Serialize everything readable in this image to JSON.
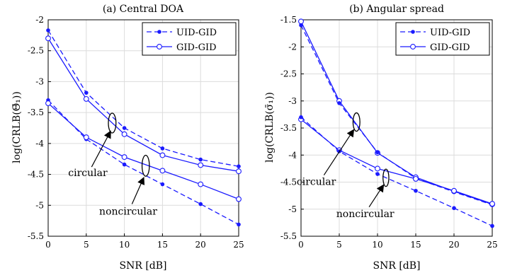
{
  "chart_data": [
    {
      "type": "line",
      "title": "(a) Central DOA",
      "xlabel": "SNR [dB]",
      "ylabel": "log(CRLB(Θ̄₁))",
      "xlim": [
        0,
        25
      ],
      "ylim": [
        -5.5,
        -2
      ],
      "xticks": [
        "0",
        "5",
        "10",
        "15",
        "20",
        "25"
      ],
      "yticks": [
        "-2",
        "-2.5",
        "-3",
        "-3.5",
        "-4",
        "-4.5",
        "-5",
        "-5.5"
      ],
      "grid": true,
      "legend_position": "top-right",
      "legend": [
        "UID-GID",
        "GID-GID"
      ],
      "x": [
        0,
        5,
        10,
        15,
        20,
        25
      ],
      "series": [
        {
          "name": "UID-GID",
          "group": "circular",
          "style": "dashed",
          "marker": "filled-dot",
          "values": [
            -2.17,
            -3.18,
            -3.75,
            -4.08,
            -4.26,
            -4.37
          ]
        },
        {
          "name": "GID-GID",
          "group": "circular",
          "style": "solid",
          "marker": "open-circle",
          "values": [
            -2.3,
            -3.28,
            -3.85,
            -4.19,
            -4.35,
            -4.45
          ]
        },
        {
          "name": "UID-GID",
          "group": "noncircular",
          "style": "dashed",
          "marker": "filled-dot",
          "values": [
            -3.3,
            -3.93,
            -4.34,
            -4.66,
            -4.98,
            -5.31
          ]
        },
        {
          "name": "GID-GID",
          "group": "noncircular",
          "style": "solid",
          "marker": "open-circle",
          "values": [
            -3.35,
            -3.9,
            -4.22,
            -4.44,
            -4.66,
            -4.9
          ]
        }
      ],
      "annotations": [
        {
          "text": "circular",
          "ellipse_at": [
            8.4,
            -3.67
          ],
          "ellipse_half_width": 0.5,
          "ellipse_half_height": 0.16,
          "label_at": [
            5.2,
            -4.53
          ],
          "arrow_from": [
            5.7,
            -4.38
          ],
          "arrow_to": [
            8.2,
            -3.8
          ]
        },
        {
          "text": "noncircular",
          "ellipse_at": [
            12.8,
            -4.36
          ],
          "ellipse_half_width": 0.48,
          "ellipse_half_height": 0.17,
          "label_at": [
            10.5,
            -5.15
          ],
          "arrow_from": [
            11.0,
            -4.98
          ],
          "arrow_to": [
            12.55,
            -4.55
          ]
        }
      ]
    },
    {
      "type": "line",
      "title": "(b) Angular spread",
      "xlabel": "SNR [dB]",
      "ylabel": "log(CRLB(σ̄₁))",
      "xlim": [
        0,
        25
      ],
      "ylim": [
        -5.5,
        -1.5
      ],
      "xticks": [
        "0",
        "5",
        "10",
        "15",
        "20",
        "25"
      ],
      "yticks": [
        "-1.5",
        "-2",
        "-2.5",
        "-3",
        "-3.5",
        "-4",
        "-4.5",
        "-5",
        "-5.5"
      ],
      "grid": true,
      "legend_position": "top-right",
      "legend": [
        "UID-GID",
        "GID-GID"
      ],
      "x": [
        0,
        5,
        10,
        15,
        20,
        25
      ],
      "series": [
        {
          "name": "GID-GID",
          "group": "circular",
          "style": "solid",
          "marker": "open-circle",
          "values": [
            -1.53,
            -3.0,
            -3.96,
            -4.41,
            -4.67,
            -4.91
          ]
        },
        {
          "name": "UID-GID",
          "group": "circular",
          "style": "dashed",
          "marker": "filled-dot",
          "values": [
            -1.6,
            -3.04,
            -3.95,
            -4.43,
            -4.68,
            -4.92
          ]
        },
        {
          "name": "GID-GID",
          "group": "noncircular",
          "style": "solid",
          "marker": "open-circle",
          "values": [
            -3.34,
            -3.91,
            -4.25,
            -4.44,
            -4.66,
            -4.9
          ]
        },
        {
          "name": "UID-GID",
          "group": "noncircular",
          "style": "dashed",
          "marker": "filled-dot",
          "values": [
            -3.3,
            -3.93,
            -4.35,
            -4.66,
            -4.98,
            -5.31
          ]
        }
      ],
      "annotations": [
        {
          "text": "circular",
          "ellipse_at": [
            7.25,
            -3.39
          ],
          "ellipse_half_width": 0.45,
          "ellipse_half_height": 0.17,
          "label_at": [
            2.0,
            -4.55
          ],
          "arrow_from": [
            3.0,
            -4.37
          ],
          "arrow_to": [
            6.9,
            -3.53
          ]
        },
        {
          "text": "noncircular",
          "ellipse_at": [
            11.1,
            -4.42
          ],
          "ellipse_half_width": 0.38,
          "ellipse_half_height": 0.16,
          "label_at": [
            8.4,
            -5.15
          ],
          "arrow_from": [
            8.9,
            -4.96
          ],
          "arrow_to": [
            10.8,
            -4.55
          ]
        }
      ]
    }
  ]
}
